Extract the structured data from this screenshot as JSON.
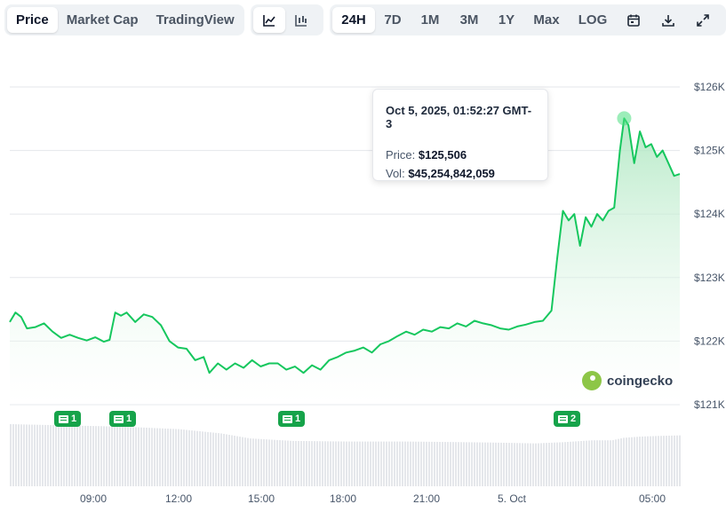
{
  "toolbar": {
    "tabs": [
      "Price",
      "Market Cap",
      "TradingView"
    ],
    "active_tab": "Price",
    "chart_type_icons": [
      "line-chart-icon",
      "candlestick-icon"
    ],
    "ranges": [
      "24H",
      "7D",
      "1M",
      "3M",
      "1Y",
      "Max",
      "LOG"
    ],
    "active_range": "24H",
    "action_icons": [
      "calendar-icon",
      "download-icon",
      "expand-icon"
    ]
  },
  "tooltip": {
    "datetime": "Oct 5, 2025, 01:52:27 GMT-3",
    "price_label": "Price:",
    "price_value": "$125,506",
    "vol_label": "Vol:",
    "vol_value": "$45,254,842,059"
  },
  "brand": "coingecko",
  "news_badges": [
    {
      "count": "1",
      "at": "07:30"
    },
    {
      "count": "1",
      "at": "10:05"
    },
    {
      "count": "1",
      "at": "15:45"
    },
    {
      "count": "2",
      "at": "01:45"
    }
  ],
  "colors": {
    "line": "#16c75e",
    "fill_top": "#bfeccd",
    "badge": "#16a34a",
    "volume": "#e5e7eb"
  },
  "chart_data": {
    "type": "area",
    "x_ticks": [
      "09:00",
      "12:00",
      "15:00",
      "18:00",
      "21:00",
      "5. Oct",
      "05:00"
    ],
    "y_ticks": [
      "$126K",
      "$125K",
      "$124K",
      "$123K",
      "$122K",
      "$121K"
    ],
    "ylim": [
      121000,
      126000
    ],
    "x_range_hours": [
      -1.9,
      21.6
    ],
    "price_series": [
      [
        -1.9,
        122300
      ],
      [
        -1.7,
        122450
      ],
      [
        -1.5,
        122380
      ],
      [
        -1.3,
        122200
      ],
      [
        -1.0,
        122220
      ],
      [
        -0.7,
        122280
      ],
      [
        -0.4,
        122150
      ],
      [
        -0.1,
        122050
      ],
      [
        0.2,
        122100
      ],
      [
        0.5,
        122050
      ],
      [
        0.8,
        122010
      ],
      [
        1.1,
        122060
      ],
      [
        1.4,
        121990
      ],
      [
        1.6,
        122020
      ],
      [
        1.8,
        122450
      ],
      [
        2.0,
        122400
      ],
      [
        2.2,
        122450
      ],
      [
        2.5,
        122300
      ],
      [
        2.8,
        122420
      ],
      [
        3.1,
        122380
      ],
      [
        3.4,
        122250
      ],
      [
        3.7,
        122000
      ],
      [
        4.0,
        121900
      ],
      [
        4.3,
        121880
      ],
      [
        4.6,
        121700
      ],
      [
        4.9,
        121750
      ],
      [
        5.1,
        121500
      ],
      [
        5.4,
        121650
      ],
      [
        5.7,
        121550
      ],
      [
        6.0,
        121650
      ],
      [
        6.3,
        121580
      ],
      [
        6.6,
        121700
      ],
      [
        6.9,
        121600
      ],
      [
        7.2,
        121650
      ],
      [
        7.5,
        121650
      ],
      [
        7.8,
        121550
      ],
      [
        8.1,
        121600
      ],
      [
        8.4,
        121500
      ],
      [
        8.7,
        121620
      ],
      [
        9.0,
        121550
      ],
      [
        9.3,
        121700
      ],
      [
        9.6,
        121750
      ],
      [
        9.9,
        121820
      ],
      [
        10.2,
        121850
      ],
      [
        10.5,
        121900
      ],
      [
        10.8,
        121820
      ],
      [
        11.1,
        121950
      ],
      [
        11.4,
        122000
      ],
      [
        11.7,
        122080
      ],
      [
        12.0,
        122150
      ],
      [
        12.3,
        122100
      ],
      [
        12.6,
        122180
      ],
      [
        12.9,
        122150
      ],
      [
        13.2,
        122220
      ],
      [
        13.5,
        122200
      ],
      [
        13.8,
        122280
      ],
      [
        14.1,
        122230
      ],
      [
        14.4,
        122320
      ],
      [
        14.7,
        122280
      ],
      [
        15.0,
        122250
      ],
      [
        15.3,
        122200
      ],
      [
        15.6,
        122180
      ],
      [
        15.9,
        122230
      ],
      [
        16.2,
        122260
      ],
      [
        16.5,
        122300
      ],
      [
        16.8,
        122320
      ],
      [
        17.1,
        122480
      ],
      [
        17.3,
        123300
      ],
      [
        17.5,
        124050
      ],
      [
        17.7,
        123900
      ],
      [
        17.9,
        124000
      ],
      [
        18.1,
        123500
      ],
      [
        18.3,
        123950
      ],
      [
        18.5,
        123800
      ],
      [
        18.7,
        124000
      ],
      [
        18.9,
        123900
      ],
      [
        19.1,
        124050
      ],
      [
        19.3,
        124100
      ],
      [
        19.5,
        125000
      ],
      [
        19.65,
        125506
      ],
      [
        19.8,
        125400
      ],
      [
        20.0,
        124800
      ],
      [
        20.2,
        125300
      ],
      [
        20.4,
        125050
      ],
      [
        20.6,
        125100
      ],
      [
        20.8,
        124900
      ],
      [
        21.0,
        125000
      ],
      [
        21.2,
        124800
      ],
      [
        21.4,
        124600
      ],
      [
        21.6,
        124630
      ]
    ],
    "volume_series": [
      [
        -1.9,
        100
      ],
      [
        0.0,
        98
      ],
      [
        2.0,
        96
      ],
      [
        4.0,
        92
      ],
      [
        5.5,
        85
      ],
      [
        6.5,
        77
      ],
      [
        8.0,
        73
      ],
      [
        10.0,
        72
      ],
      [
        12.0,
        72
      ],
      [
        14.0,
        71
      ],
      [
        15.5,
        70
      ],
      [
        16.5,
        69
      ],
      [
        17.5,
        71
      ],
      [
        18.5,
        74
      ],
      [
        19.2,
        74
      ],
      [
        19.6,
        78
      ],
      [
        20.2,
        80
      ],
      [
        20.8,
        81
      ],
      [
        21.6,
        82
      ]
    ]
  }
}
